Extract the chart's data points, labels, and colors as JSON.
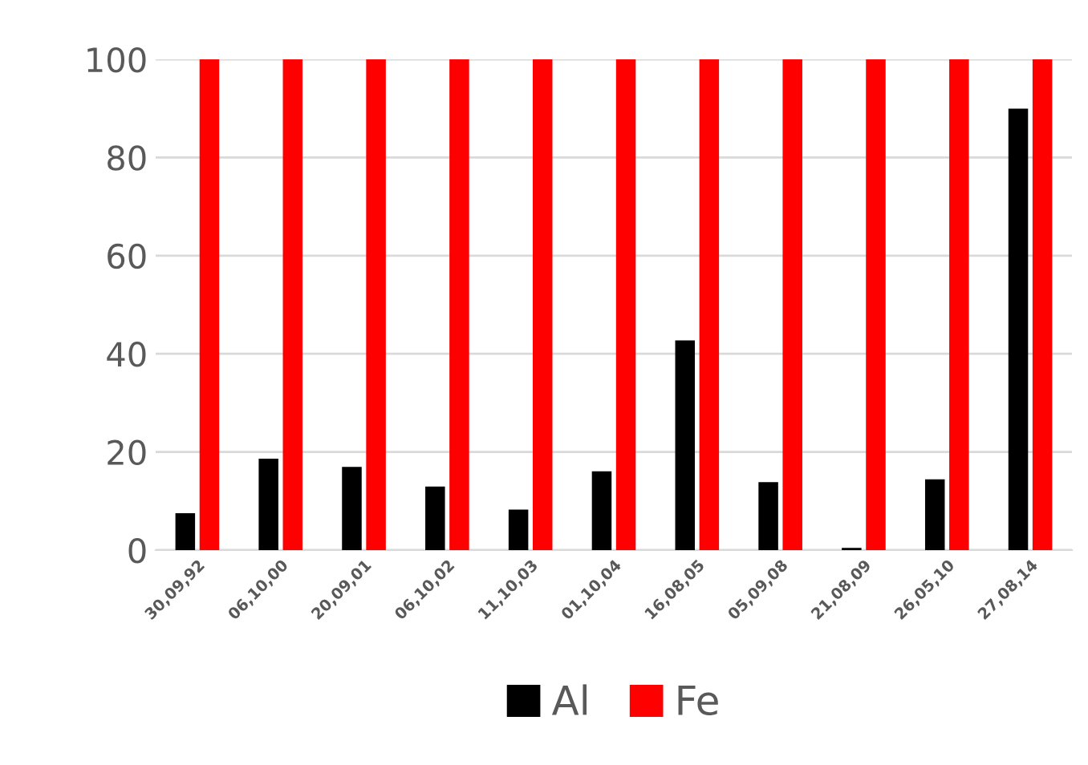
{
  "chart_data": {
    "type": "bar",
    "categories": [
      "30,09,92",
      "06,10,00",
      "20,09,01",
      "06,10,02",
      "11,10,03",
      "01,10,04",
      "16,08,05",
      "05,09,08",
      "21,08,09",
      "26,05,10",
      "27,08,14"
    ],
    "series": [
      {
        "name": "Al",
        "color": "#000000",
        "values": [
          7.4,
          18.5,
          16.8,
          12.8,
          8.1,
          15.9,
          42.6,
          13.7,
          0.3,
          14.3,
          89.8
        ]
      },
      {
        "name": "Fe",
        "color": "#ff0000",
        "values": [
          100,
          100,
          100,
          100,
          100,
          100,
          100,
          100,
          100,
          100,
          100
        ]
      }
    ],
    "ylim": [
      0,
      100
    ],
    "yticks": [
      0,
      20,
      40,
      60,
      80,
      100
    ],
    "grid": "y",
    "legend": "bottom"
  }
}
